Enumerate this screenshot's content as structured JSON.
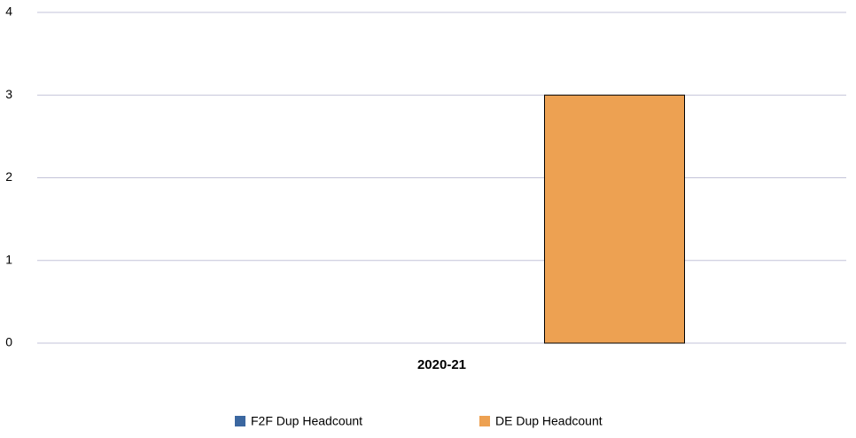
{
  "chart_data": {
    "type": "bar",
    "categories": [
      "2020-21"
    ],
    "series": [
      {
        "name": "F2F Dup Headcount",
        "color": "#3b67a0",
        "values": [
          0
        ]
      },
      {
        "name": "DE Dup Headcount",
        "color": "#eda152",
        "values": [
          3
        ]
      }
    ],
    "ylim": [
      0,
      4
    ],
    "yticks": [
      0,
      1,
      2,
      3,
      4
    ],
    "grid": true,
    "legend": "bottom"
  }
}
